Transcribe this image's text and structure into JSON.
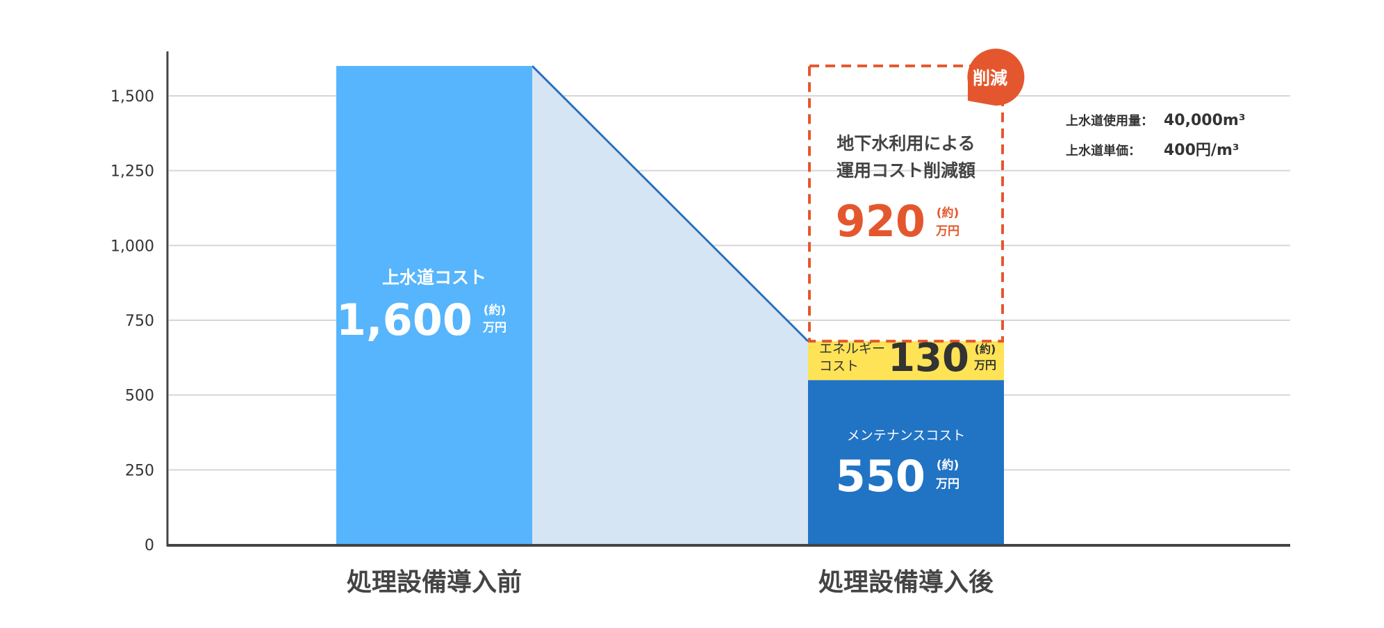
{
  "chart_data": {
    "type": "bar",
    "stacked": true,
    "categories": [
      "処理設備導入前",
      "処理設備導入後"
    ],
    "ylim": [
      0,
      1650
    ],
    "yticks": [
      "0",
      "250",
      "500",
      "750",
      "1,000",
      "1,250",
      "1,500"
    ],
    "ytick_values": [
      0,
      250,
      500,
      750,
      1000,
      1250,
      1500
    ],
    "grid": true,
    "unit_top": "(約)",
    "unit_bottom": "万円",
    "before": {
      "label": "上水道コスト",
      "value": 1600,
      "value_text": "1,600",
      "color": "#56b5fc"
    },
    "after": {
      "maintenance": {
        "label": "メンテナンスコスト",
        "value": 550,
        "value_text": "550",
        "color": "#2173c4"
      },
      "energy": {
        "label_line1": "エネルギー",
        "label_line2": "コスト",
        "value": 130,
        "value_text": "130",
        "color": "#ffe356"
      },
      "reduction": {
        "label_line1": "地下水利用による",
        "label_line2": "運用コスト削減額",
        "value": 920,
        "value_text": "920",
        "color": "#e4572e",
        "badge": "削減"
      }
    },
    "connector_fill": "#d5e5f4",
    "connector_line": "#2a6fbd"
  },
  "notes": {
    "usage_label": "上水道使用量：",
    "usage_value": "40,000m³",
    "price_label": "上水道単価：",
    "price_value": "400円/m³"
  }
}
